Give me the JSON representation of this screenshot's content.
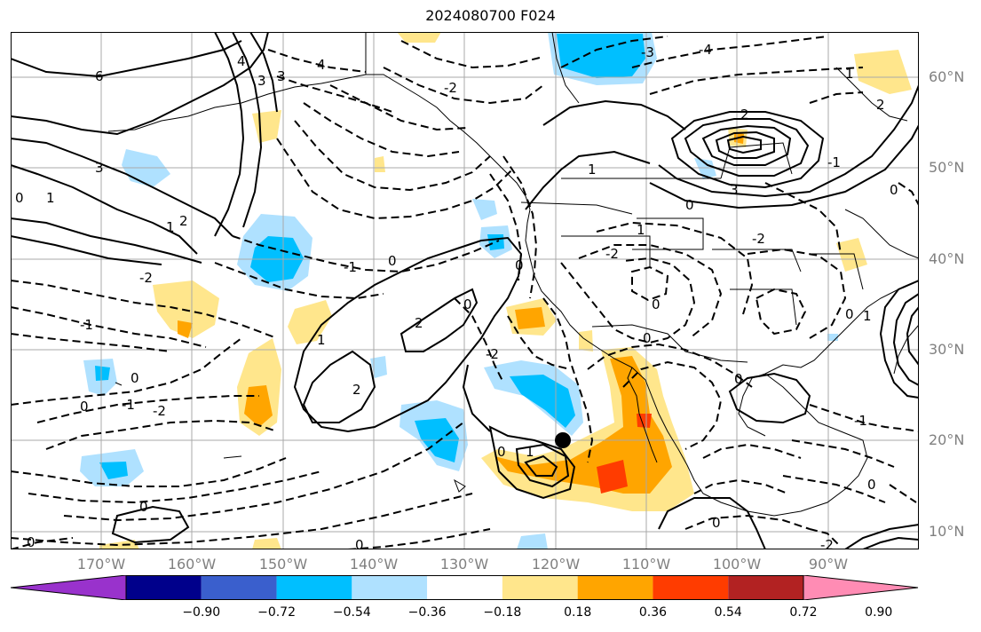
{
  "title": "2024080700 F024",
  "lat_labels": [
    "60°N",
    "50°N",
    "40°N",
    "30°N",
    "20°N",
    "10°N"
  ],
  "lon_labels": [
    "170°W",
    "160°W",
    "150°W",
    "140°W",
    "130°W",
    "120°W",
    "110°W",
    "100°W",
    "90°W"
  ],
  "colorbar": {
    "colors": [
      "#9932cc",
      "#00008b",
      "#3a5fcd",
      "#00bfff",
      "#afe1ff",
      "#ffffff",
      "#ffe68c",
      "#ffa500",
      "#ff3c00",
      "#b22222",
      "#ff8cb4"
    ],
    "ticks": [
      "−0.90",
      "−0.72",
      "−0.54",
      "−0.36",
      "−0.18",
      "0.18",
      "0.36",
      "0.54",
      "0.72",
      "0.90"
    ]
  },
  "contour_labels": [
    "6",
    "4",
    "3",
    "2",
    "1",
    "0",
    "-1",
    "-2",
    "-3",
    "-4"
  ],
  "colors": {
    "grid": "#a9a9a9",
    "coast": "#000000",
    "tick_text": "#808080"
  }
}
